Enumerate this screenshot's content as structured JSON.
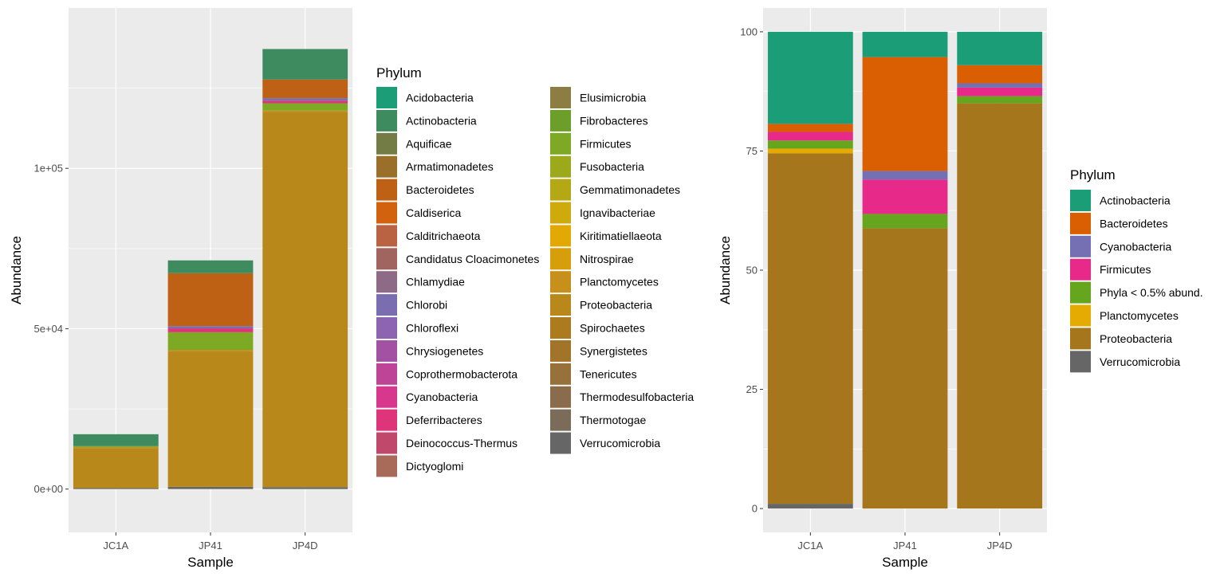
{
  "chart_data": [
    {
      "type": "bar",
      "stacked": true,
      "title": "",
      "xlabel": "Sample",
      "ylabel": "Abundance",
      "categories": [
        "JC1A",
        "JP41",
        "JP4D"
      ],
      "ylim": [
        -13500,
        150000
      ],
      "yticks": [
        0,
        50000,
        100000
      ],
      "ytick_labels": [
        "0e+00",
        "5e+04",
        "1e+05"
      ],
      "grid": true,
      "legend": {
        "title": "Phylum",
        "placement": "right",
        "columns": 2,
        "items": [
          {
            "name": "Acidobacteria",
            "color": "#1B9E77"
          },
          {
            "name": "Actinobacteria",
            "color": "#3D8B5E"
          },
          {
            "name": "Aquificae",
            "color": "#737C45"
          },
          {
            "name": "Armatimonadetes",
            "color": "#9A6F2A"
          },
          {
            "name": "Bacteroidetes",
            "color": "#BE6115"
          },
          {
            "name": "Caldiserica",
            "color": "#D3620F"
          },
          {
            "name": "Calditrichaeota",
            "color": "#B96342"
          },
          {
            "name": "Candidatus Cloacimonetes",
            "color": "#A0655F"
          },
          {
            "name": "Chlamydiae",
            "color": "#8E6A87"
          },
          {
            "name": "Chlorobi",
            "color": "#7A6EB0"
          },
          {
            "name": "Chloroflexi",
            "color": "#8C64AF"
          },
          {
            "name": "Chrysiogenetes",
            "color": "#A352A3"
          },
          {
            "name": "Coprothermobacterota",
            "color": "#BE4498"
          },
          {
            "name": "Cyanobacteria",
            "color": "#D8378E"
          },
          {
            "name": "Deferribacteres",
            "color": "#DE3479"
          },
          {
            "name": "Deinococcus-Thermus",
            "color": "#C0486A"
          },
          {
            "name": "Dictyoglomi",
            "color": "#A86A59"
          },
          {
            "name": "Elusimicrobia",
            "color": "#8C7D42"
          },
          {
            "name": "Fibrobacteres",
            "color": "#6C9E2A"
          },
          {
            "name": "Firmicutes",
            "color": "#7DA925"
          },
          {
            "name": "Fusobacteria",
            "color": "#9BA91B"
          },
          {
            "name": "Gemmatimonadetes",
            "color": "#B4A815"
          },
          {
            "name": "Ignavibacteriae",
            "color": "#CEAA0D"
          },
          {
            "name": "Kiritimatiellaeota",
            "color": "#E2A804"
          },
          {
            "name": "Nitrospirae",
            "color": "#D79E0C"
          },
          {
            "name": "Planctomycetes",
            "color": "#C7901A"
          },
          {
            "name": "Proteobacteria",
            "color": "#B8891A"
          },
          {
            "name": "Spirochaetes",
            "color": "#AC7A1F"
          },
          {
            "name": "Synergistetes",
            "color": "#A2742A"
          },
          {
            "name": "Tenericutes",
            "color": "#97713A"
          },
          {
            "name": "Thermodesulfobacteria",
            "color": "#8A6C4C"
          },
          {
            "name": "Thermotogae",
            "color": "#7A6C59"
          },
          {
            "name": "Verrucomicrobia",
            "color": "#666666"
          }
        ]
      },
      "series": [
        {
          "name": "Verrucomicrobia",
          "color": "#666666",
          "values": [
            300,
            700,
            600
          ]
        },
        {
          "name": "Proteobacteria",
          "color": "#B8891A",
          "values": [
            12500,
            42400,
            117000
          ]
        },
        {
          "name": "Planctomycetes",
          "color": "#C7901A",
          "values": [
            300,
            300,
            400
          ]
        },
        {
          "name": "Firmicutes",
          "color": "#7DA925",
          "values": [
            300,
            5500,
            2300
          ]
        },
        {
          "name": "Deferribacteres",
          "color": "#DE3479",
          "values": [
            0,
            1200,
            800
          ]
        },
        {
          "name": "Chlorobi",
          "color": "#7A6EB0",
          "values": [
            0,
            700,
            800
          ]
        },
        {
          "name": "Bacteroidetes",
          "color": "#BE6115",
          "values": [
            0,
            16500,
            5800
          ]
        },
        {
          "name": "Actinobacteria",
          "color": "#3D8B5E",
          "values": [
            3700,
            4000,
            9500
          ]
        }
      ]
    },
    {
      "type": "bar",
      "stacked": true,
      "title": "",
      "xlabel": "Sample",
      "ylabel": "Abundance",
      "categories": [
        "JC1A",
        "JP41",
        "JP4D"
      ],
      "ylim": [
        -5,
        105
      ],
      "yticks": [
        0,
        25,
        50,
        75,
        100
      ],
      "ytick_labels": [
        "0",
        "25",
        "50",
        "75",
        "100"
      ],
      "grid": true,
      "legend": {
        "title": "Phylum",
        "placement": "right",
        "columns": 1,
        "items": [
          {
            "name": "Actinobacteria",
            "color": "#1B9E77"
          },
          {
            "name": "Bacteroidetes",
            "color": "#D95F02"
          },
          {
            "name": "Cyanobacteria",
            "color": "#7570B3"
          },
          {
            "name": "Firmicutes",
            "color": "#E7298A"
          },
          {
            "name": "Phyla < 0.5% abund.",
            "color": "#66A61E"
          },
          {
            "name": "Planctomycetes",
            "color": "#E6AB02"
          },
          {
            "name": "Proteobacteria",
            "color": "#A6761D"
          },
          {
            "name": "Verrucomicrobia",
            "color": "#666666"
          }
        ]
      },
      "series": [
        {
          "name": "Verrucomicrobia",
          "color": "#666666",
          "values": [
            1.0,
            0.0,
            0.0
          ]
        },
        {
          "name": "Proteobacteria",
          "color": "#A6761D",
          "values": [
            73.5,
            58.8,
            85.0
          ]
        },
        {
          "name": "Planctomycetes",
          "color": "#E6AB02",
          "values": [
            1.0,
            0.0,
            0.0
          ]
        },
        {
          "name": "Phyla < 0.5% abund.",
          "color": "#66A61E",
          "values": [
            1.7,
            3.0,
            1.5
          ]
        },
        {
          "name": "Firmicutes",
          "color": "#E7298A",
          "values": [
            1.8,
            7.2,
            1.8
          ]
        },
        {
          "name": "Cyanobacteria",
          "color": "#7570B3",
          "values": [
            0.0,
            1.8,
            0.9
          ]
        },
        {
          "name": "Bacteroidetes",
          "color": "#D95F02",
          "values": [
            1.7,
            23.9,
            3.8
          ]
        },
        {
          "name": "Actinobacteria",
          "color": "#1B9E77",
          "values": [
            19.3,
            5.3,
            7.0
          ]
        }
      ]
    }
  ]
}
